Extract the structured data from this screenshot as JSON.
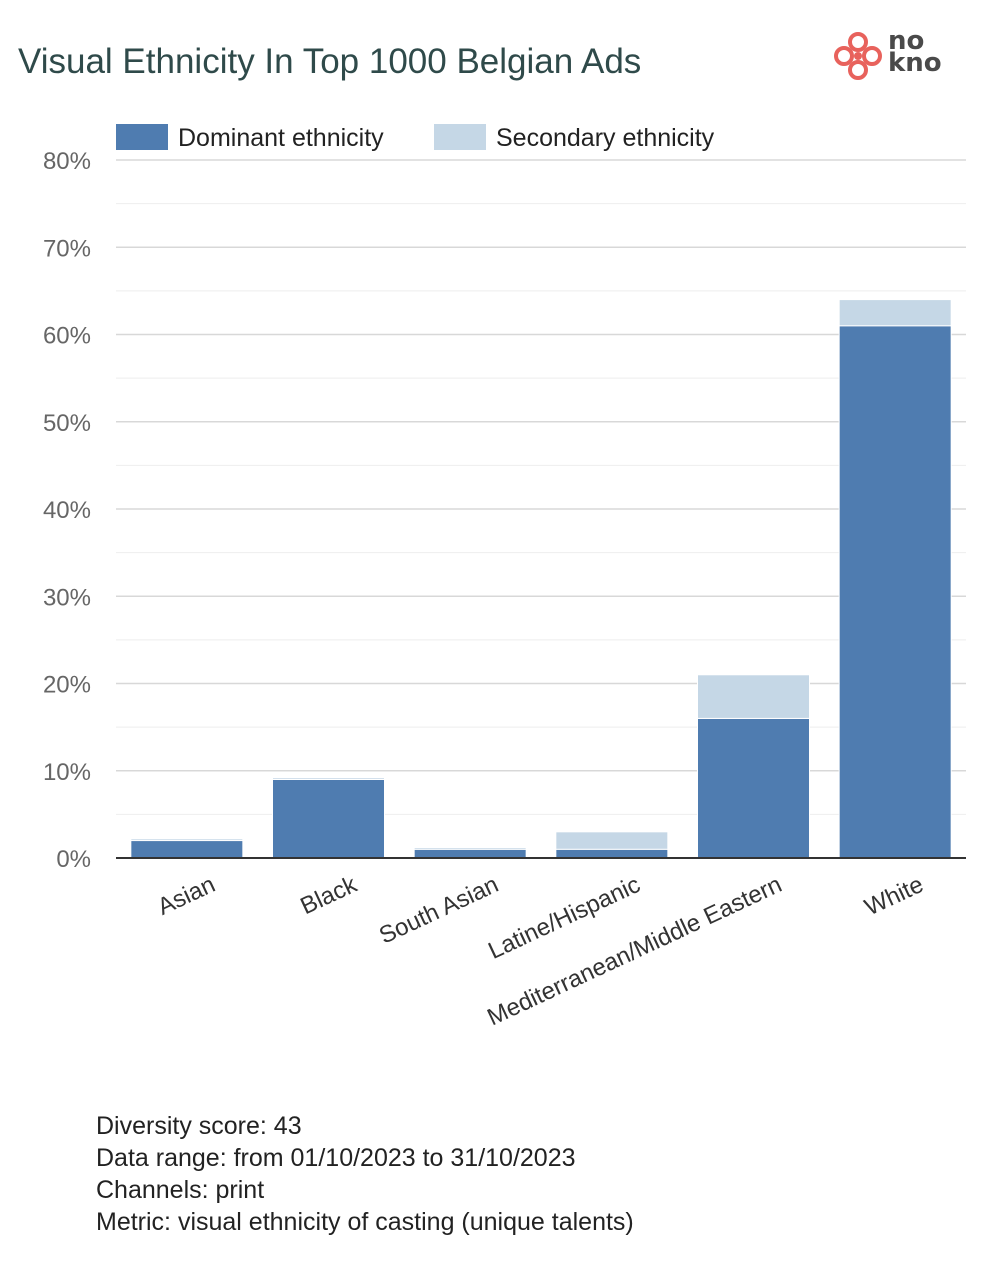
{
  "chart_data": {
    "type": "bar",
    "stacked": true,
    "title": "Visual Ethnicity In Top 1000 Belgian Ads",
    "categories": [
      "Asian",
      "Black",
      "South Asian",
      "Latine/Hispanic",
      "Mediterranean/Middle Eastern",
      "White"
    ],
    "series": [
      {
        "name": "Dominant ethnicity",
        "values": [
          2,
          9,
          1,
          1,
          16,
          61
        ],
        "color": "#4f7cb0"
      },
      {
        "name": "Secondary ethnicity",
        "values": [
          0.2,
          0.2,
          0.2,
          2,
          5,
          3
        ],
        "color": "#c5d7e6"
      }
    ],
    "yticks": [
      0,
      10,
      20,
      30,
      40,
      50,
      60,
      70,
      80
    ],
    "ytick_labels": [
      "0%",
      "10%",
      "20%",
      "30%",
      "40%",
      "50%",
      "60%",
      "70%",
      "80%"
    ],
    "ylim": [
      0,
      80
    ],
    "grid": true,
    "legend": "top-left",
    "xlabel": "",
    "ylabel": ""
  },
  "logo": {
    "line1": "no",
    "line2": "kno",
    "color": "#e8625c"
  },
  "footer": {
    "diversity_score": "Diversity score: 43",
    "data_range": "Data range: from 01/10/2023 to 31/10/2023",
    "channels": "Channels: print",
    "metric": "Metric: visual ethnicity of casting (unique talents)"
  }
}
